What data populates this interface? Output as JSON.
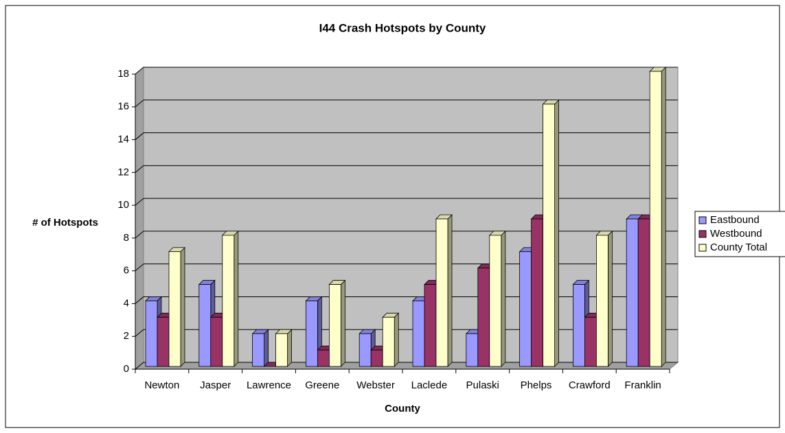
{
  "chart_data": {
    "type": "bar3d",
    "title": "I44 Crash Hotspots by County",
    "x_label": "County",
    "y_label": "# of Hotspots",
    "categories": [
      "Newton",
      "Jasper",
      "Lawrence",
      "Greene",
      "Webster",
      "Laclede",
      "Pulaski",
      "Phelps",
      "Crawford",
      "Franklin"
    ],
    "series": [
      {
        "name": "Eastbound",
        "color": "#9999ff",
        "values": [
          4,
          5,
          2,
          4,
          2,
          4,
          2,
          7,
          5,
          9
        ]
      },
      {
        "name": "Westbound",
        "color": "#993366",
        "values": [
          3,
          3,
          0,
          1,
          1,
          5,
          6,
          9,
          3,
          9
        ]
      },
      {
        "name": "County Total",
        "color": "#ffffcc",
        "values": [
          7,
          8,
          2,
          5,
          3,
          9,
          8,
          16,
          8,
          18
        ]
      }
    ],
    "ylim": [
      0,
      18
    ],
    "yticks": [
      0,
      2,
      4,
      6,
      8,
      10,
      12,
      14,
      16,
      18
    ],
    "grid": true,
    "legend": "right"
  }
}
